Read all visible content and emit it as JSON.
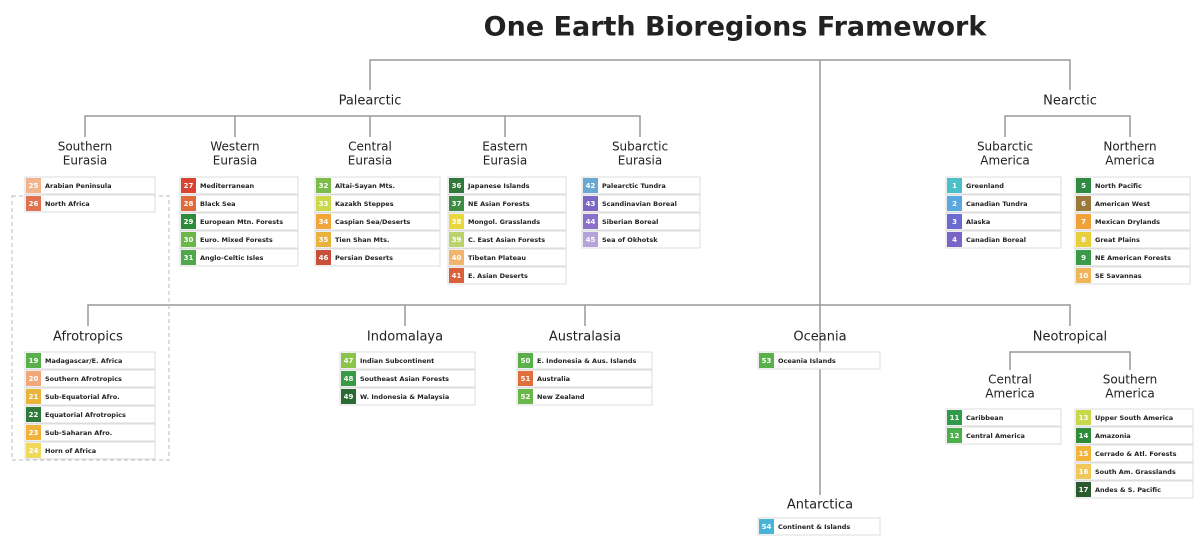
{
  "title": "One Earth Bioregions Framework",
  "realms": [
    {
      "name": "Palearctic",
      "subrealms": [
        {
          "label": [
            "Southern",
            "Eurasia"
          ],
          "items": [
            {
              "code": 25,
              "name": "Arabian Peninsula",
              "color": "#f2b48c"
            },
            {
              "code": 26,
              "name": "North Africa",
              "color": "#e0714f"
            }
          ]
        },
        {
          "label": [
            "Western",
            "Eurasia"
          ],
          "items": [
            {
              "code": 27,
              "name": "Mediterranean",
              "color": "#d9432f"
            },
            {
              "code": 28,
              "name": "Black Sea",
              "color": "#e06a3c"
            },
            {
              "code": 29,
              "name": "European Mtn. Forests",
              "color": "#2e8b3a"
            },
            {
              "code": 30,
              "name": "Euro. Mixed Forests",
              "color": "#6ab84a"
            },
            {
              "code": 31,
              "name": "Anglo-Celtic Isles",
              "color": "#4ea84a"
            }
          ]
        },
        {
          "label": [
            "Central",
            "Eurasia"
          ],
          "items": [
            {
              "code": 32,
              "name": "Altai-Sayan Mts.",
              "color": "#7cbc4a"
            },
            {
              "code": 33,
              "name": "Kazakh Steppes",
              "color": "#c9d94a"
            },
            {
              "code": 34,
              "name": "Caspian Sea/Deserts",
              "color": "#f0a638"
            },
            {
              "code": 35,
              "name": "Tien Shan Mts.",
              "color": "#e8b23c"
            },
            {
              "code": 46,
              "name": "Persian Deserts",
              "color": "#c8503a"
            }
          ]
        },
        {
          "label": [
            "Eastern",
            "Eurasia"
          ],
          "items": [
            {
              "code": 36,
              "name": "Japanese Islands",
              "color": "#2f7a3a"
            },
            {
              "code": 37,
              "name": "NE Asian Forests",
              "color": "#3d8c44"
            },
            {
              "code": 38,
              "name": "Mongol. Grasslands",
              "color": "#e8d83c"
            },
            {
              "code": 39,
              "name": "C. East Asian Forests",
              "color": "#b8d46a"
            },
            {
              "code": 40,
              "name": "Tibetan Plateau",
              "color": "#f0b46a"
            },
            {
              "code": 41,
              "name": "E. Asian Deserts",
              "color": "#d9603a"
            }
          ]
        },
        {
          "label": [
            "Subarctic",
            "Eurasia"
          ],
          "items": [
            {
              "code": 42,
              "name": "Palearctic Tundra",
              "color": "#6aa8d4"
            },
            {
              "code": 43,
              "name": "Scandinavian Boreal",
              "color": "#7b68c4"
            },
            {
              "code": 44,
              "name": "Siberian Boreal",
              "color": "#8a70c8"
            },
            {
              "code": 45,
              "name": "Sea of Okhotsk",
              "color": "#b4a4dc"
            }
          ]
        }
      ]
    },
    {
      "name": "Nearctic",
      "subrealms": [
        {
          "label": [
            "Subarctic",
            "America"
          ],
          "items": [
            {
              "code": 1,
              "name": "Greenland",
              "color": "#4cc0c8"
            },
            {
              "code": 2,
              "name": "Canadian Tundra",
              "color": "#5aa8e0"
            },
            {
              "code": 3,
              "name": "Alaska",
              "color": "#6a6ad0"
            },
            {
              "code": 4,
              "name": "Canadian Boreal",
              "color": "#7a64c8"
            }
          ]
        },
        {
          "label": [
            "Northern",
            "America"
          ],
          "items": [
            {
              "code": 5,
              "name": "North Pacific",
              "color": "#2f8a44"
            },
            {
              "code": 6,
              "name": "American West",
              "color": "#9a7a3a"
            },
            {
              "code": 7,
              "name": "Mexican Drylands",
              "color": "#f0a23a"
            },
            {
              "code": 8,
              "name": "Great Plains",
              "color": "#e8d03c"
            },
            {
              "code": 9,
              "name": "NE American Forests",
              "color": "#3a9a4a"
            },
            {
              "code": 10,
              "name": "SE Savannas",
              "color": "#f0b45a"
            }
          ]
        }
      ]
    },
    {
      "name": "Afrotropics",
      "items": [
        {
          "code": 19,
          "name": "Madagascar/E. Africa",
          "color": "#5ab04a"
        },
        {
          "code": 20,
          "name": "Southern Afrotropics",
          "color": "#f0a87a"
        },
        {
          "code": 21,
          "name": "Sub-Equatorial Afro.",
          "color": "#e8b43c"
        },
        {
          "code": 22,
          "name": "Equatorial Afrotropics",
          "color": "#2f7a3a"
        },
        {
          "code": 23,
          "name": "Sub-Saharan Afro.",
          "color": "#f0b23a"
        },
        {
          "code": 24,
          "name": "Horn of Africa",
          "color": "#f0d85a"
        }
      ]
    },
    {
      "name": "Indomalaya",
      "items": [
        {
          "code": 47,
          "name": "Indian Subcontinent",
          "color": "#8cc44a"
        },
        {
          "code": 48,
          "name": "Southeast Asian Forests",
          "color": "#3a9a44"
        },
        {
          "code": 49,
          "name": "W. Indonesia & Malaysia",
          "color": "#2a6a34"
        }
      ]
    },
    {
      "name": "Australasia",
      "items": [
        {
          "code": 50,
          "name": "E. Indonesia & Aus. Islands",
          "color": "#5ab04a"
        },
        {
          "code": 51,
          "name": "Australia",
          "color": "#e0703a"
        },
        {
          "code": 52,
          "name": "New Zealand",
          "color": "#6ab84a"
        }
      ]
    },
    {
      "name": "Oceania",
      "items": [
        {
          "code": 53,
          "name": "Oceania Islands",
          "color": "#5ab04a"
        }
      ]
    },
    {
      "name": "Neotropical",
      "subrealms": [
        {
          "label": [
            "Central",
            "America"
          ],
          "items": [
            {
              "code": 11,
              "name": "Caribbean",
              "color": "#2f9a4a"
            },
            {
              "code": 12,
              "name": "Central America",
              "color": "#4ab04a"
            }
          ]
        },
        {
          "label": [
            "Southern",
            "America"
          ],
          "items": [
            {
              "code": 13,
              "name": "Upper South America",
              "color": "#c8d84a"
            },
            {
              "code": 14,
              "name": "Amazonia",
              "color": "#2f8a3a"
            },
            {
              "code": 15,
              "name": "Cerrado & Atl. Forests",
              "color": "#f0b43a"
            },
            {
              "code": 16,
              "name": "South Am. Grasslands",
              "color": "#f0c85a"
            },
            {
              "code": 17,
              "name": "Andes & S. Pacific",
              "color": "#2a5a2e"
            }
          ]
        }
      ]
    },
    {
      "name": "Antarctica",
      "items": [
        {
          "code": 54,
          "name": "Continent & Islands",
          "color": "#4ab4d8"
        }
      ]
    }
  ]
}
